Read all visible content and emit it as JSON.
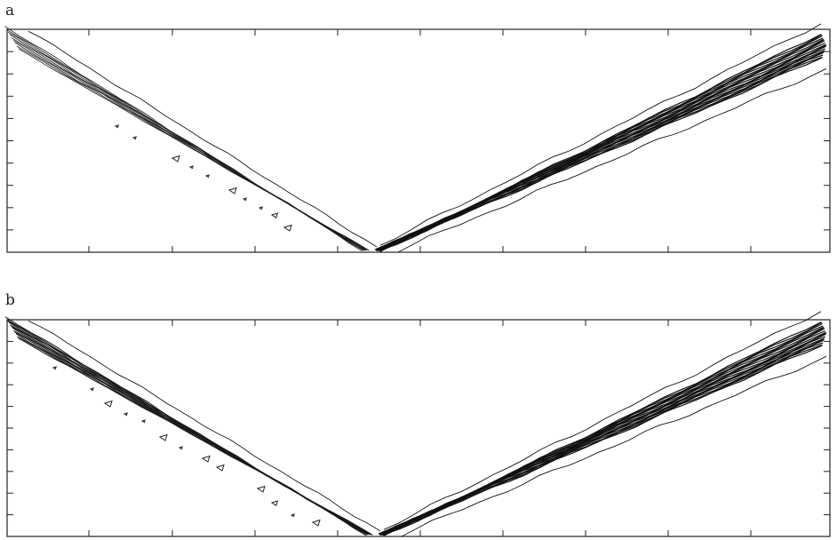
{
  "figure": {
    "panels": [
      {
        "label": "a"
      },
      {
        "label": "b"
      }
    ]
  }
}
